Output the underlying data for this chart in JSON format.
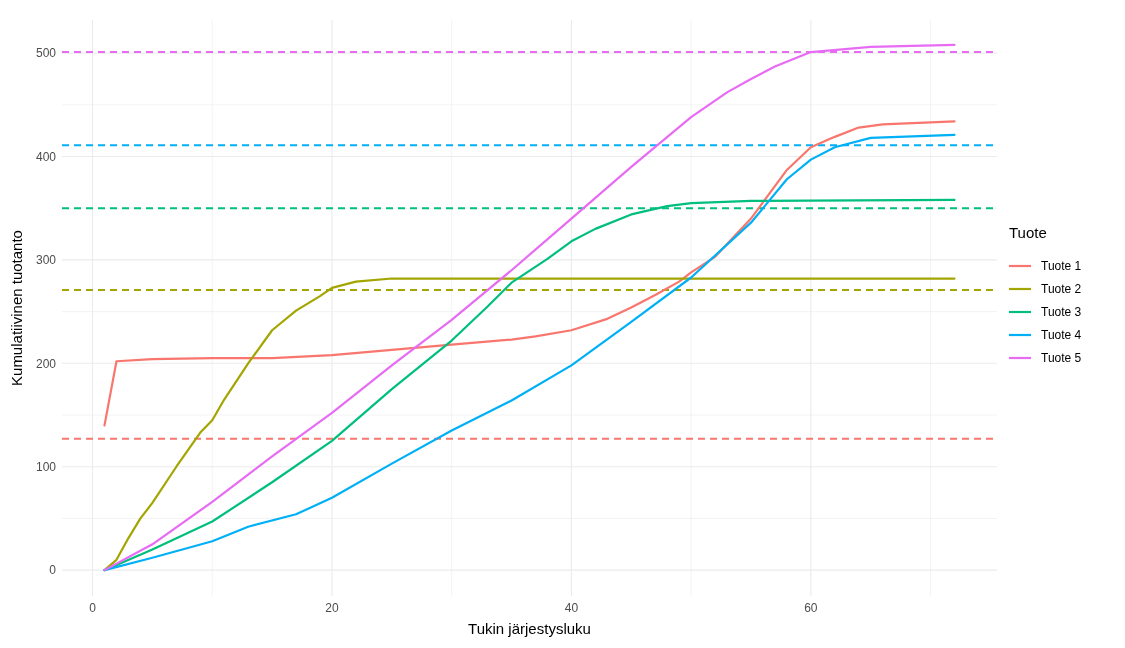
{
  "chart_data": {
    "type": "line",
    "xlabel": "Tukin järjestysluku",
    "ylabel": "Kumulatiivinen tuotanto",
    "legend_title": "Tuote",
    "legend": "right",
    "grid": true,
    "line_style": "solid",
    "marker": "none",
    "xlim": [
      -2.55,
      75.55
    ],
    "xticks": [
      0,
      {
        "value": 10,
        "label": null
      },
      20,
      {
        "value": 30,
        "label": null
      },
      40,
      {
        "value": 50,
        "label": null
      },
      60,
      {
        "value": 70,
        "label": null
      }
    ],
    "ylim": [
      -25,
      532
    ],
    "yticks": [
      0,
      {
        "value": 50,
        "label": null
      },
      100,
      {
        "value": 150,
        "label": null
      },
      200,
      {
        "value": 250,
        "label": null
      },
      300,
      {
        "value": 350,
        "label": null
      },
      400,
      {
        "value": 450,
        "label": null
      },
      500
    ],
    "series": [
      {
        "name": "Tuote 1",
        "color": "#f8766d",
        "x": [
          1,
          2,
          5,
          10,
          15,
          20,
          25,
          30,
          35,
          37,
          40,
          43,
          45,
          47,
          49,
          50,
          52,
          55,
          58,
          60,
          62,
          64,
          66,
          68,
          72
        ],
        "values": [
          140,
          202,
          204,
          205,
          205,
          208,
          213,
          218,
          223,
          226,
          232,
          243,
          254,
          266,
          279,
          288,
          303,
          340,
          387,
          409,
          419,
          428,
          431,
          432,
          434
        ]
      },
      {
        "name": "Tuote 2",
        "color": "#a3a500",
        "x": [
          1,
          2,
          3,
          4,
          5,
          7,
          9,
          10,
          11,
          13,
          15,
          17,
          19,
          20,
          22,
          25,
          30,
          72
        ],
        "values": [
          0,
          10,
          31,
          50,
          65,
          100,
          133,
          145,
          165,
          200,
          232,
          251,
          265,
          273,
          279,
          282,
          282,
          282
        ]
      },
      {
        "name": "Tuote 3",
        "color": "#00bf7d",
        "x": [
          1,
          5,
          10,
          15,
          20,
          25,
          30,
          33,
          35,
          38,
          40,
          42,
          45,
          48,
          50,
          55,
          72
        ],
        "values": [
          0,
          20,
          47,
          85,
          125,
          175,
          222,
          255,
          278,
          301,
          318,
          330,
          344,
          352,
          355,
          357,
          358
        ]
      },
      {
        "name": "Tuote 4",
        "color": "#00b0f6",
        "x": [
          1,
          5,
          10,
          13,
          17,
          20,
          25,
          30,
          35,
          40,
          45,
          50,
          55,
          58,
          60,
          62,
          65,
          72
        ],
        "values": [
          0,
          12,
          28,
          42,
          54,
          70,
          103,
          135,
          164,
          198,
          240,
          283,
          336,
          378,
          397,
          409,
          418,
          421
        ]
      },
      {
        "name": "Tuote 5",
        "color": "#e76bf3",
        "x": [
          1,
          5,
          10,
          15,
          20,
          25,
          30,
          35,
          40,
          45,
          50,
          53,
          55,
          57,
          60,
          65,
          72
        ],
        "values": [
          0,
          25,
          66,
          110,
          152,
          198,
          242,
          290,
          340,
          390,
          438,
          462,
          475,
          487,
          501,
          506,
          508
        ]
      }
    ],
    "ref_lines": [
      {
        "axis": "y",
        "value": 127,
        "color": "#f8766d",
        "line_style": "dashed"
      },
      {
        "axis": "y",
        "value": 271,
        "color": "#a3a500",
        "line_style": "dashed"
      },
      {
        "axis": "y",
        "value": 350,
        "color": "#00bf7d",
        "line_style": "dashed"
      },
      {
        "axis": "y",
        "value": 411,
        "color": "#00b0f6",
        "line_style": "dashed"
      },
      {
        "axis": "y",
        "value": 501,
        "color": "#e76bf3",
        "line_style": "dashed"
      }
    ]
  }
}
